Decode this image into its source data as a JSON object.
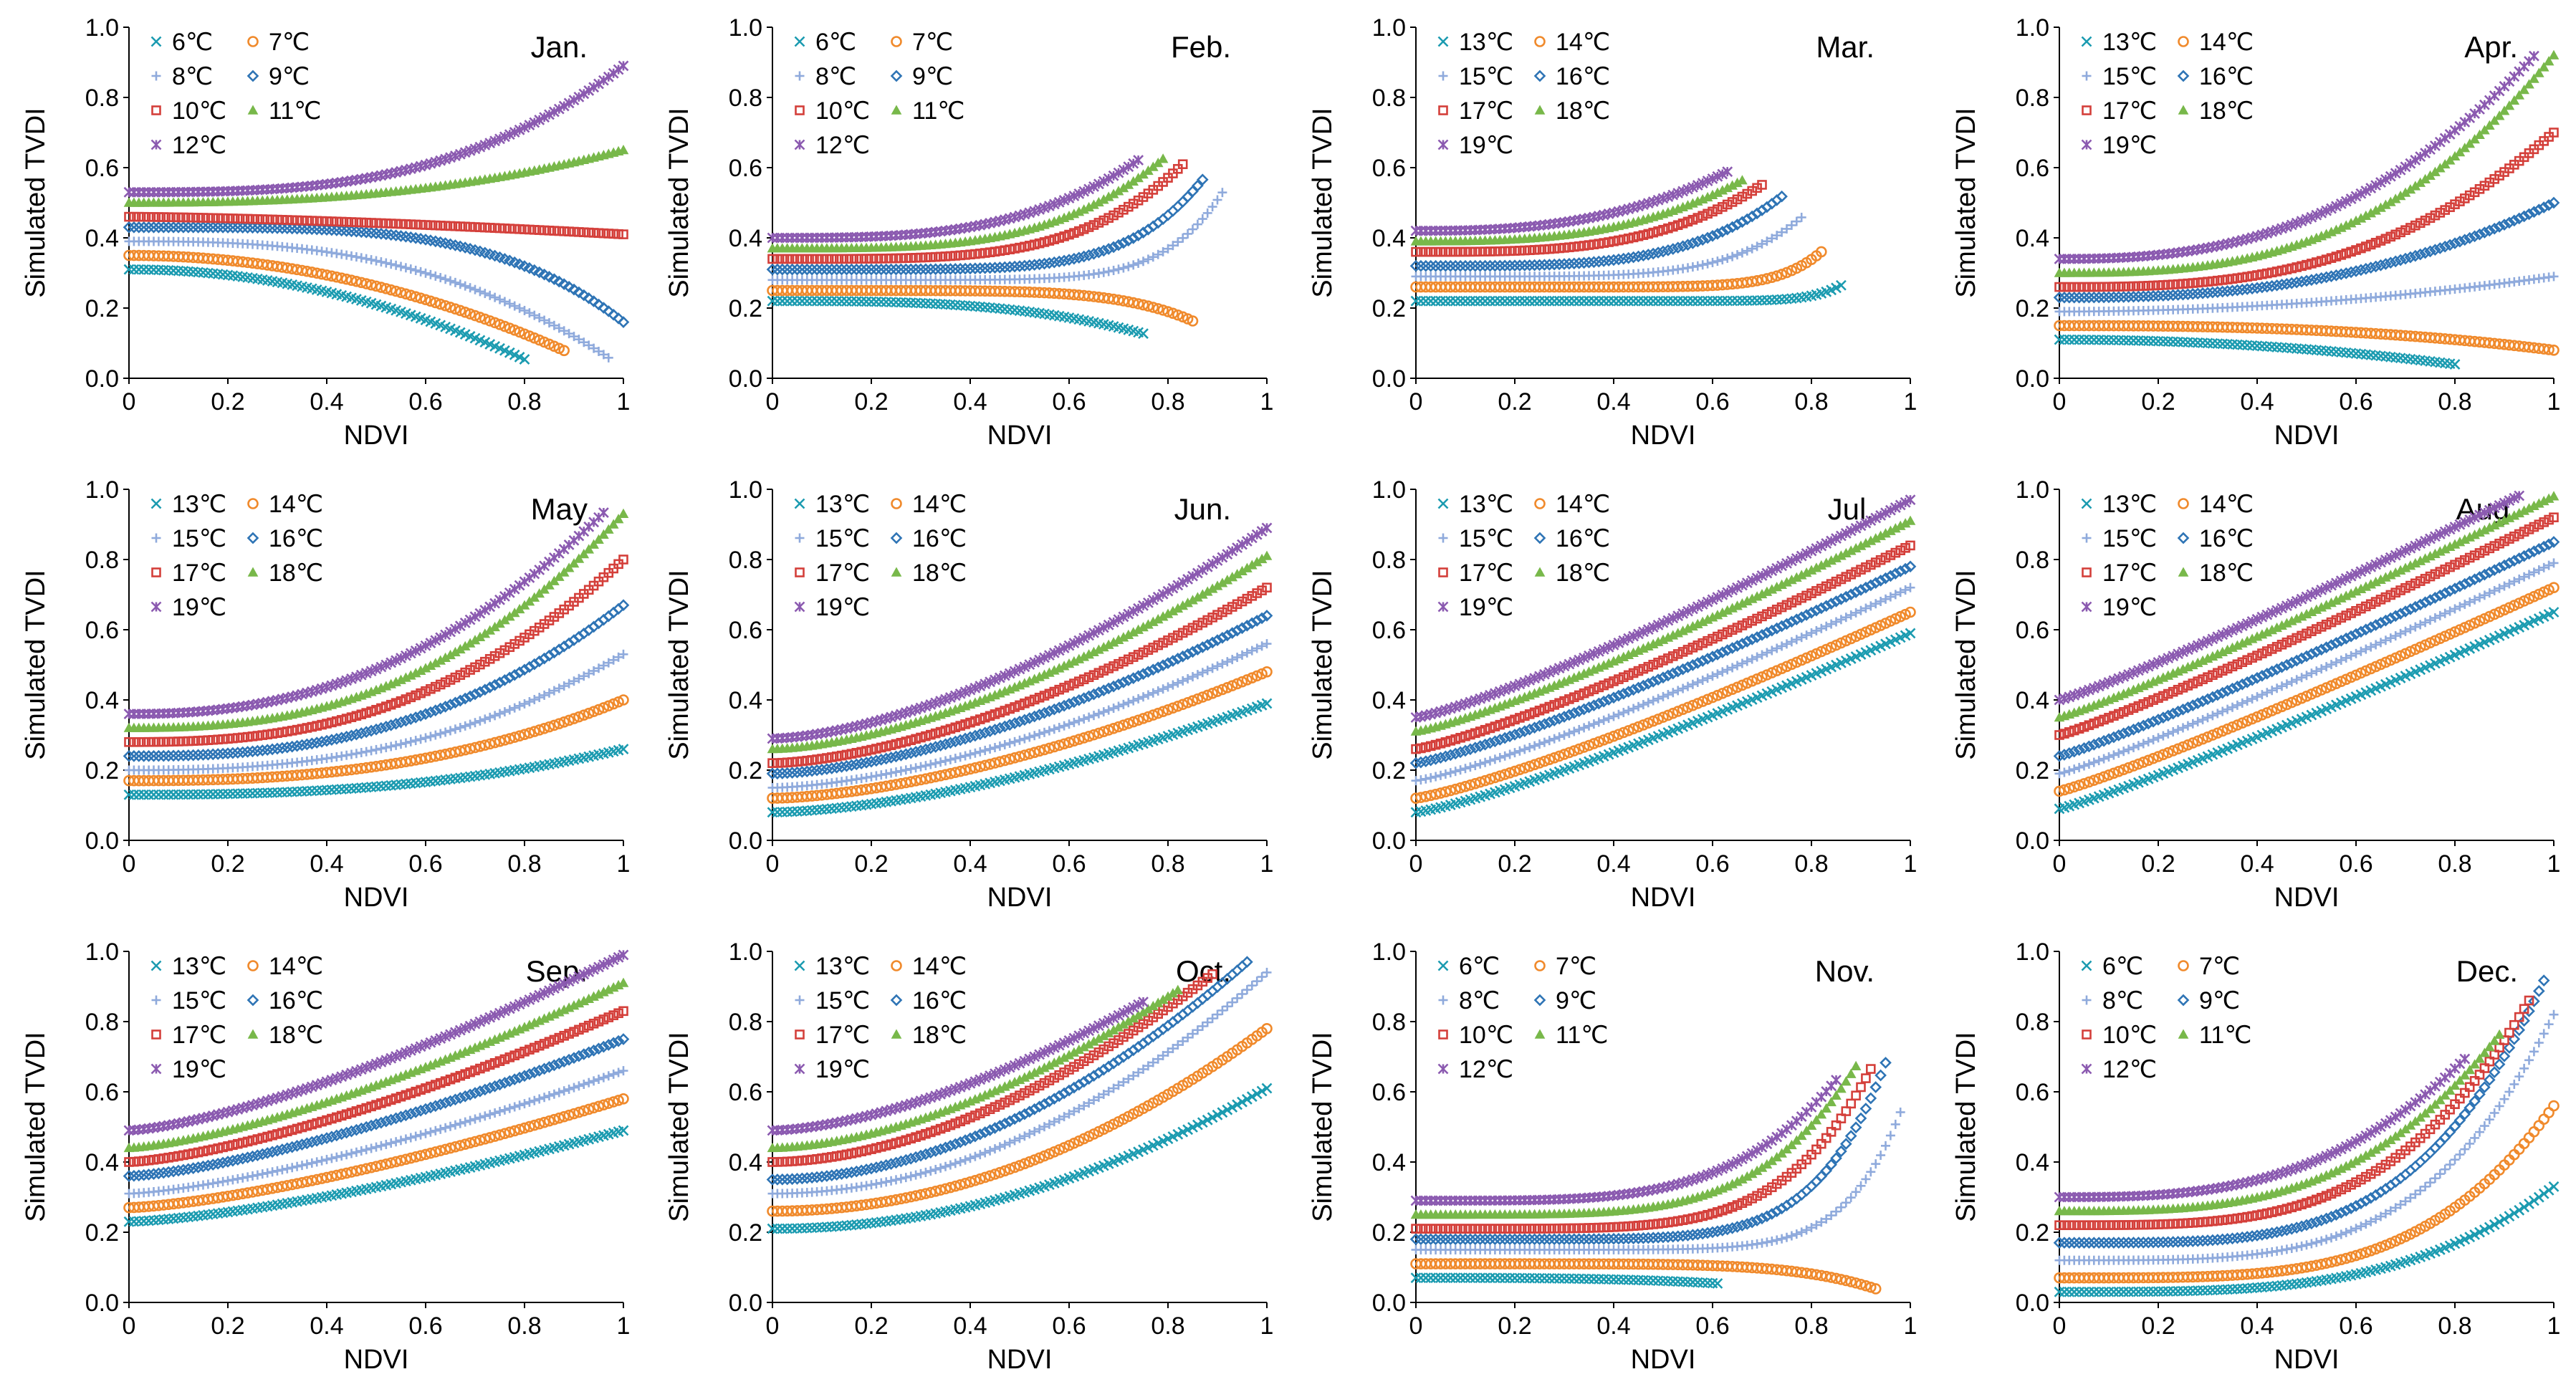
{
  "figure": {
    "ylabel": "Simulated TVDI",
    "xlabel": "NDVI"
  },
  "legend_colors": [
    "#1b9bb0",
    "#f08a2c",
    "#8faadc",
    "#2e74b5",
    "#d43f3a",
    "#78b84a",
    "#8b5ab0"
  ],
  "legend_markers": [
    "x-mark",
    "circle",
    "plus",
    "diamond",
    "square",
    "triangle",
    "cross"
  ],
  "chart_data": [
    {
      "type": "scatter",
      "title": "Jan.",
      "xlabel": "NDVI",
      "ylabel": "Simulated TVDI",
      "xlim": [
        0,
        1
      ],
      "ylim": [
        0,
        1
      ],
      "xticks": [
        "0",
        "0.2",
        "0.4",
        "0.6",
        "0.8",
        "1"
      ],
      "yticks": [
        "0.0",
        "0.2",
        "0.4",
        "0.6",
        "0.8",
        "1.0"
      ],
      "series": [
        {
          "name": "6℃",
          "y0": 0.31,
          "k": -0.4,
          "p": 2.0,
          "xmax": 0.8
        },
        {
          "name": "7℃",
          "y0": 0.35,
          "k": -0.35,
          "p": 2.0,
          "xmax": 0.88
        },
        {
          "name": "8℃",
          "y0": 0.39,
          "k": -0.36,
          "p": 2.7,
          "xmax": 0.97
        },
        {
          "name": "9℃",
          "y0": 0.43,
          "k": -0.27,
          "p": 4.0,
          "xmax": 1.0
        },
        {
          "name": "10℃",
          "y0": 0.46,
          "k": -0.05,
          "p": 1.5,
          "xmax": 1.0
        },
        {
          "name": "11℃",
          "y0": 0.5,
          "k": 0.15,
          "p": 2.5,
          "xmax": 1.0
        },
        {
          "name": "12℃",
          "y0": 0.53,
          "k": 0.36,
          "p": 3.0,
          "xmax": 1.0
        }
      ]
    },
    {
      "type": "scatter",
      "title": "Feb.",
      "xlabel": "NDVI",
      "ylabel": "Simulated TVDI",
      "xlim": [
        0,
        1
      ],
      "ylim": [
        0,
        1
      ],
      "xticks": [
        "0",
        "0.2",
        "0.4",
        "0.6",
        "0.8",
        "1"
      ],
      "yticks": [
        "0.0",
        "0.2",
        "0.4",
        "0.6",
        "0.8",
        "1.0"
      ],
      "series": [
        {
          "name": "6℃",
          "y0": 0.22,
          "k": -0.22,
          "p": 3.0,
          "xmax": 0.75
        },
        {
          "name": "7℃",
          "y0": 0.25,
          "k": -0.23,
          "p": 6.0,
          "xmax": 0.85
        },
        {
          "name": "8℃",
          "y0": 0.28,
          "k": 0.53,
          "p": 8.0,
          "xmax": 0.91
        },
        {
          "name": "9℃",
          "y0": 0.31,
          "k": 0.59,
          "p": 6.0,
          "xmax": 0.87
        },
        {
          "name": "10℃",
          "y0": 0.34,
          "k": 0.59,
          "p": 4.2,
          "xmax": 0.83
        },
        {
          "name": "11℃",
          "y0": 0.37,
          "k": 0.61,
          "p": 3.7,
          "xmax": 0.79
        },
        {
          "name": "12℃",
          "y0": 0.4,
          "k": 0.58,
          "p": 3.2,
          "xmax": 0.74
        }
      ]
    },
    {
      "type": "scatter",
      "title": "Mar.",
      "xlabel": "NDVI",
      "ylabel": "Simulated TVDI",
      "xlim": [
        0,
        1
      ],
      "ylim": [
        0,
        1
      ],
      "xticks": [
        "0",
        "0.2",
        "0.4",
        "0.6",
        "0.8",
        "1"
      ],
      "yticks": [
        "0.0",
        "0.2",
        "0.4",
        "0.6",
        "0.8",
        "1.0"
      ],
      "series": [
        {
          "name": "13℃",
          "y0": 0.22,
          "k": 0.43,
          "p": 15.0,
          "xmax": 0.86
        },
        {
          "name": "14℃",
          "y0": 0.26,
          "k": 0.73,
          "p": 10.0,
          "xmax": 0.82
        },
        {
          "name": "15℃",
          "y0": 0.29,
          "k": 0.66,
          "p": 5.5,
          "xmax": 0.78
        },
        {
          "name": "16℃",
          "y0": 0.32,
          "k": 0.66,
          "p": 4.0,
          "xmax": 0.74
        },
        {
          "name": "17℃",
          "y0": 0.36,
          "k": 0.62,
          "p": 3.3,
          "xmax": 0.7
        },
        {
          "name": "18℃",
          "y0": 0.39,
          "k": 0.58,
          "p": 2.9,
          "xmax": 0.66
        },
        {
          "name": "19℃",
          "y0": 0.42,
          "k": 0.56,
          "p": 2.6,
          "xmax": 0.63
        }
      ]
    },
    {
      "type": "scatter",
      "title": "Apr.",
      "xlabel": "NDVI",
      "ylabel": "Simulated TVDI",
      "xlim": [
        0,
        1
      ],
      "ylim": [
        0,
        1
      ],
      "xticks": [
        "0",
        "0.2",
        "0.4",
        "0.6",
        "0.8",
        "1"
      ],
      "yticks": [
        "0.0",
        "0.2",
        "0.4",
        "0.6",
        "0.8",
        "1.0"
      ],
      "series": [
        {
          "name": "13℃",
          "y0": 0.11,
          "k": -0.11,
          "p": 2.0,
          "xmax": 0.8
        },
        {
          "name": "14℃",
          "y0": 0.15,
          "k": -0.07,
          "p": 2.5,
          "xmax": 1.0
        },
        {
          "name": "15℃",
          "y0": 0.19,
          "k": 0.1,
          "p": 2.0,
          "xmax": 1.0
        },
        {
          "name": "16℃",
          "y0": 0.23,
          "k": 0.27,
          "p": 2.5,
          "xmax": 1.0
        },
        {
          "name": "17℃",
          "y0": 0.26,
          "k": 0.44,
          "p": 2.8,
          "xmax": 1.0
        },
        {
          "name": "18℃",
          "y0": 0.3,
          "k": 0.62,
          "p": 2.8,
          "xmax": 1.0
        },
        {
          "name": "19℃",
          "y0": 0.34,
          "k": 0.64,
          "p": 2.5,
          "xmax": 0.96
        }
      ]
    },
    {
      "type": "scatter",
      "title": "May",
      "xlabel": "NDVI",
      "ylabel": "Simulated TVDI",
      "xlim": [
        0,
        1
      ],
      "ylim": [
        0,
        1
      ],
      "xticks": [
        "0",
        "0.2",
        "0.4",
        "0.6",
        "0.8",
        "1"
      ],
      "yticks": [
        "0.0",
        "0.2",
        "0.4",
        "0.6",
        "0.8",
        "1.0"
      ],
      "series": [
        {
          "name": "13℃",
          "y0": 0.13,
          "k": 0.13,
          "p": 2.5,
          "xmax": 1.0
        },
        {
          "name": "14℃",
          "y0": 0.17,
          "k": 0.23,
          "p": 2.5,
          "xmax": 1.0
        },
        {
          "name": "15℃",
          "y0": 0.2,
          "k": 0.33,
          "p": 2.5,
          "xmax": 1.0
        },
        {
          "name": "16℃",
          "y0": 0.24,
          "k": 0.43,
          "p": 2.5,
          "xmax": 1.0
        },
        {
          "name": "17℃",
          "y0": 0.28,
          "k": 0.52,
          "p": 2.5,
          "xmax": 1.0
        },
        {
          "name": "18℃",
          "y0": 0.32,
          "k": 0.61,
          "p": 2.5,
          "xmax": 1.0
        },
        {
          "name": "19℃",
          "y0": 0.36,
          "k": 0.63,
          "p": 2.3,
          "xmax": 0.96
        }
      ]
    },
    {
      "type": "scatter",
      "title": "Jun.",
      "xlabel": "NDVI",
      "ylabel": "Simulated TVDI",
      "xlim": [
        0,
        1
      ],
      "ylim": [
        0,
        1
      ],
      "xticks": [
        "0",
        "0.2",
        "0.4",
        "0.6",
        "0.8",
        "1"
      ],
      "yticks": [
        "0.0",
        "0.2",
        "0.4",
        "0.6",
        "0.8",
        "1.0"
      ],
      "series": [
        {
          "name": "13℃",
          "y0": 0.08,
          "k": 0.31,
          "p": 1.6,
          "xmax": 1.0
        },
        {
          "name": "14℃",
          "y0": 0.12,
          "k": 0.36,
          "p": 1.6,
          "xmax": 1.0
        },
        {
          "name": "15℃",
          "y0": 0.15,
          "k": 0.41,
          "p": 1.6,
          "xmax": 1.0
        },
        {
          "name": "16℃",
          "y0": 0.19,
          "k": 0.45,
          "p": 1.6,
          "xmax": 1.0
        },
        {
          "name": "17℃",
          "y0": 0.22,
          "k": 0.5,
          "p": 1.6,
          "xmax": 1.0
        },
        {
          "name": "18℃",
          "y0": 0.26,
          "k": 0.55,
          "p": 1.6,
          "xmax": 1.0
        },
        {
          "name": "19℃",
          "y0": 0.29,
          "k": 0.6,
          "p": 1.6,
          "xmax": 1.0
        }
      ]
    },
    {
      "type": "scatter",
      "title": "Jul.",
      "xlabel": "NDVI",
      "ylabel": "Simulated TVDI",
      "xlim": [
        0,
        1
      ],
      "ylim": [
        0,
        1
      ],
      "xticks": [
        "0",
        "0.2",
        "0.4",
        "0.6",
        "0.8",
        "1"
      ],
      "yticks": [
        "0.0",
        "0.2",
        "0.4",
        "0.6",
        "0.8",
        "1.0"
      ],
      "series": [
        {
          "name": "13℃",
          "y0": 0.08,
          "k": 0.51,
          "p": 1.2,
          "xmax": 1.0
        },
        {
          "name": "14℃",
          "y0": 0.12,
          "k": 0.53,
          "p": 1.2,
          "xmax": 1.0
        },
        {
          "name": "15℃",
          "y0": 0.17,
          "k": 0.55,
          "p": 1.2,
          "xmax": 1.0
        },
        {
          "name": "16℃",
          "y0": 0.22,
          "k": 0.56,
          "p": 1.2,
          "xmax": 1.0
        },
        {
          "name": "17℃",
          "y0": 0.26,
          "k": 0.58,
          "p": 1.2,
          "xmax": 1.0
        },
        {
          "name": "18℃",
          "y0": 0.31,
          "k": 0.6,
          "p": 1.2,
          "xmax": 1.0
        },
        {
          "name": "19℃",
          "y0": 0.35,
          "k": 0.62,
          "p": 1.2,
          "xmax": 1.0
        }
      ]
    },
    {
      "type": "scatter",
      "title": "Aug.",
      "xlabel": "NDVI",
      "ylabel": "Simulated TVDI",
      "xlim": [
        0,
        1
      ],
      "ylim": [
        0,
        1
      ],
      "xticks": [
        "0",
        "0.2",
        "0.4",
        "0.6",
        "0.8",
        "1"
      ],
      "yticks": [
        "0.0",
        "0.2",
        "0.4",
        "0.6",
        "0.8",
        "1.0"
      ],
      "series": [
        {
          "name": "13℃",
          "y0": 0.09,
          "k": 0.56,
          "p": 1.1,
          "xmax": 1.0
        },
        {
          "name": "14℃",
          "y0": 0.14,
          "k": 0.58,
          "p": 1.1,
          "xmax": 1.0
        },
        {
          "name": "15℃",
          "y0": 0.19,
          "k": 0.6,
          "p": 1.1,
          "xmax": 1.0
        },
        {
          "name": "16℃",
          "y0": 0.24,
          "k": 0.61,
          "p": 1.1,
          "xmax": 1.0
        },
        {
          "name": "17℃",
          "y0": 0.3,
          "k": 0.62,
          "p": 1.1,
          "xmax": 1.0
        },
        {
          "name": "18℃",
          "y0": 0.35,
          "k": 0.63,
          "p": 1.1,
          "xmax": 1.0
        },
        {
          "name": "19℃",
          "y0": 0.4,
          "k": 0.63,
          "p": 1.1,
          "xmax": 0.93
        }
      ]
    },
    {
      "type": "scatter",
      "title": "Sep.",
      "xlabel": "NDVI",
      "ylabel": "Simulated TVDI",
      "xlim": [
        0,
        1
      ],
      "ylim": [
        0,
        1
      ],
      "xticks": [
        "0",
        "0.2",
        "0.4",
        "0.6",
        "0.8",
        "1"
      ],
      "yticks": [
        "0.0",
        "0.2",
        "0.4",
        "0.6",
        "0.8",
        "1.0"
      ],
      "series": [
        {
          "name": "13℃",
          "y0": 0.23,
          "k": 0.26,
          "p": 1.4,
          "xmax": 1.0
        },
        {
          "name": "14℃",
          "y0": 0.27,
          "k": 0.31,
          "p": 1.4,
          "xmax": 1.0
        },
        {
          "name": "15℃",
          "y0": 0.31,
          "k": 0.35,
          "p": 1.4,
          "xmax": 1.0
        },
        {
          "name": "16℃",
          "y0": 0.36,
          "k": 0.39,
          "p": 1.4,
          "xmax": 1.0
        },
        {
          "name": "17℃",
          "y0": 0.4,
          "k": 0.43,
          "p": 1.4,
          "xmax": 1.0
        },
        {
          "name": "18℃",
          "y0": 0.44,
          "k": 0.47,
          "p": 1.4,
          "xmax": 1.0
        },
        {
          "name": "19℃",
          "y0": 0.49,
          "k": 0.5,
          "p": 1.4,
          "xmax": 1.0
        }
      ]
    },
    {
      "type": "scatter",
      "title": "Oct.",
      "xlabel": "NDVI",
      "ylabel": "Simulated TVDI",
      "xlim": [
        0,
        1
      ],
      "ylim": [
        0,
        1
      ],
      "xticks": [
        "0",
        "0.2",
        "0.4",
        "0.6",
        "0.8",
        "1"
      ],
      "yticks": [
        "0.0",
        "0.2",
        "0.4",
        "0.6",
        "0.8",
        "1.0"
      ],
      "series": [
        {
          "name": "13℃",
          "y0": 0.21,
          "k": 0.4,
          "p": 2.0,
          "xmax": 1.0
        },
        {
          "name": "14℃",
          "y0": 0.26,
          "k": 0.52,
          "p": 2.0,
          "xmax": 1.0
        },
        {
          "name": "15℃",
          "y0": 0.31,
          "k": 0.63,
          "p": 2.0,
          "xmax": 1.0
        },
        {
          "name": "16℃",
          "y0": 0.35,
          "k": 0.67,
          "p": 1.9,
          "xmax": 0.96
        },
        {
          "name": "17℃",
          "y0": 0.4,
          "k": 0.66,
          "p": 1.8,
          "xmax": 0.89
        },
        {
          "name": "18℃",
          "y0": 0.44,
          "k": 0.63,
          "p": 1.7,
          "xmax": 0.82
        },
        {
          "name": "19℃",
          "y0": 0.49,
          "k": 0.58,
          "p": 1.6,
          "xmax": 0.75
        }
      ]
    },
    {
      "type": "scatter",
      "title": "Nov.",
      "xlabel": "NDVI",
      "ylabel": "Simulated TVDI",
      "xlim": [
        0,
        1
      ],
      "ylim": [
        0,
        1
      ],
      "xticks": [
        "0",
        "0.2",
        "0.4",
        "0.6",
        "0.8",
        "1"
      ],
      "yticks": [
        "0.0",
        "0.2",
        "0.4",
        "0.6",
        "0.8",
        "1.0"
      ],
      "series": [
        {
          "name": "6℃",
          "y0": 0.07,
          "k": -0.07,
          "p": 3.0,
          "xmax": 0.61
        },
        {
          "name": "7℃",
          "y0": 0.11,
          "k": -0.11,
          "p": 6.0,
          "xmax": 0.93
        },
        {
          "name": "8℃",
          "y0": 0.15,
          "k": 0.47,
          "p": 9.0,
          "xmax": 0.98
        },
        {
          "name": "9℃",
          "y0": 0.18,
          "k": 0.72,
          "p": 7.0,
          "xmax": 0.95
        },
        {
          "name": "10℃",
          "y0": 0.21,
          "k": 0.72,
          "p": 5.5,
          "xmax": 0.92
        },
        {
          "name": "11℃",
          "y0": 0.25,
          "k": 0.74,
          "p": 4.8,
          "xmax": 0.89
        },
        {
          "name": "12℃",
          "y0": 0.29,
          "k": 0.68,
          "p": 4.2,
          "xmax": 0.85
        }
      ]
    },
    {
      "type": "scatter",
      "title": "Dec.",
      "xlabel": "NDVI",
      "ylabel": "Simulated TVDI",
      "xlim": [
        0,
        1
      ],
      "ylim": [
        0,
        1
      ],
      "xticks": [
        "0",
        "0.2",
        "0.4",
        "0.6",
        "0.8",
        "1"
      ],
      "yticks": [
        "0.0",
        "0.2",
        "0.4",
        "0.6",
        "0.8",
        "1.0"
      ],
      "series": [
        {
          "name": "6℃",
          "y0": 0.03,
          "k": 0.3,
          "p": 3.5,
          "xmax": 1.0
        },
        {
          "name": "7℃",
          "y0": 0.07,
          "k": 0.49,
          "p": 4.0,
          "xmax": 1.0
        },
        {
          "name": "8℃",
          "y0": 0.12,
          "k": 0.7,
          "p": 4.0,
          "xmax": 1.0
        },
        {
          "name": "9℃",
          "y0": 0.17,
          "k": 0.81,
          "p": 4.0,
          "xmax": 0.98
        },
        {
          "name": "10℃",
          "y0": 0.22,
          "k": 0.77,
          "p": 3.6,
          "xmax": 0.95
        },
        {
          "name": "11℃",
          "y0": 0.26,
          "k": 0.73,
          "p": 3.2,
          "xmax": 0.89
        },
        {
          "name": "12℃",
          "y0": 0.3,
          "k": 0.7,
          "p": 2.9,
          "xmax": 0.82
        }
      ]
    }
  ]
}
